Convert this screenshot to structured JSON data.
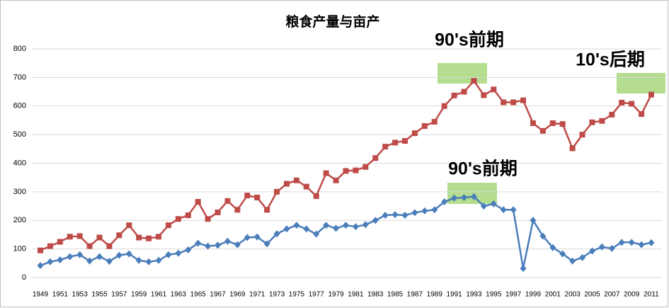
{
  "chart_data": {
    "type": "line",
    "title": "粮食产量与亩产",
    "categories": [
      "1949",
      null,
      "1951",
      null,
      "1953",
      null,
      "1955",
      null,
      "1957",
      null,
      "1959",
      null,
      "1961",
      null,
      "1963",
      null,
      "1965",
      null,
      "1967",
      null,
      "1969",
      null,
      "1971",
      null,
      "1973",
      null,
      "1975",
      null,
      "1977",
      null,
      "1979",
      null,
      "1981",
      null,
      "1983",
      null,
      "1985",
      null,
      "1987",
      null,
      "1989",
      null,
      "1991",
      null,
      "1993",
      null,
      "1995",
      null,
      "1997",
      null,
      "1999",
      null,
      "2001",
      null,
      "2003",
      null,
      "2005",
      null,
      "2007",
      null,
      "2009",
      null,
      "2011"
    ],
    "series": [
      {
        "color": "#be4b48",
        "marker": "square",
        "values": [
          95,
          110,
          125,
          143,
          145,
          110,
          140,
          110,
          148,
          183,
          140,
          137,
          143,
          183,
          205,
          218,
          265,
          205,
          228,
          268,
          237,
          287,
          280,
          237,
          300,
          328,
          340,
          318,
          285,
          365,
          340,
          373,
          375,
          387,
          418,
          458,
          472,
          478,
          505,
          530,
          545,
          600,
          637,
          650,
          688,
          638,
          658,
          613,
          613,
          620,
          540,
          513,
          540,
          537,
          452,
          500,
          543,
          548,
          570,
          612,
          608,
          572,
          640
        ]
      },
      {
        "color": "#4a7ebb",
        "marker": "diamond",
        "values": [
          42,
          55,
          62,
          73,
          80,
          58,
          73,
          57,
          78,
          83,
          60,
          55,
          60,
          80,
          85,
          97,
          120,
          110,
          113,
          127,
          115,
          140,
          142,
          118,
          153,
          170,
          183,
          170,
          152,
          183,
          172,
          183,
          178,
          185,
          200,
          218,
          220,
          218,
          227,
          233,
          237,
          265,
          278,
          280,
          283,
          250,
          258,
          237,
          237,
          32,
          200,
          145,
          105,
          83,
          58,
          70,
          93,
          107,
          102,
          123,
          123,
          115,
          122
        ]
      }
    ],
    "annotations": [
      "90's前期",
      "90's前期",
      "10's后期"
    ],
    "ylim": [
      0,
      800
    ],
    "yticks": [
      0,
      100,
      200,
      300,
      400,
      500,
      600,
      700,
      800
    ],
    "grid": true
  }
}
